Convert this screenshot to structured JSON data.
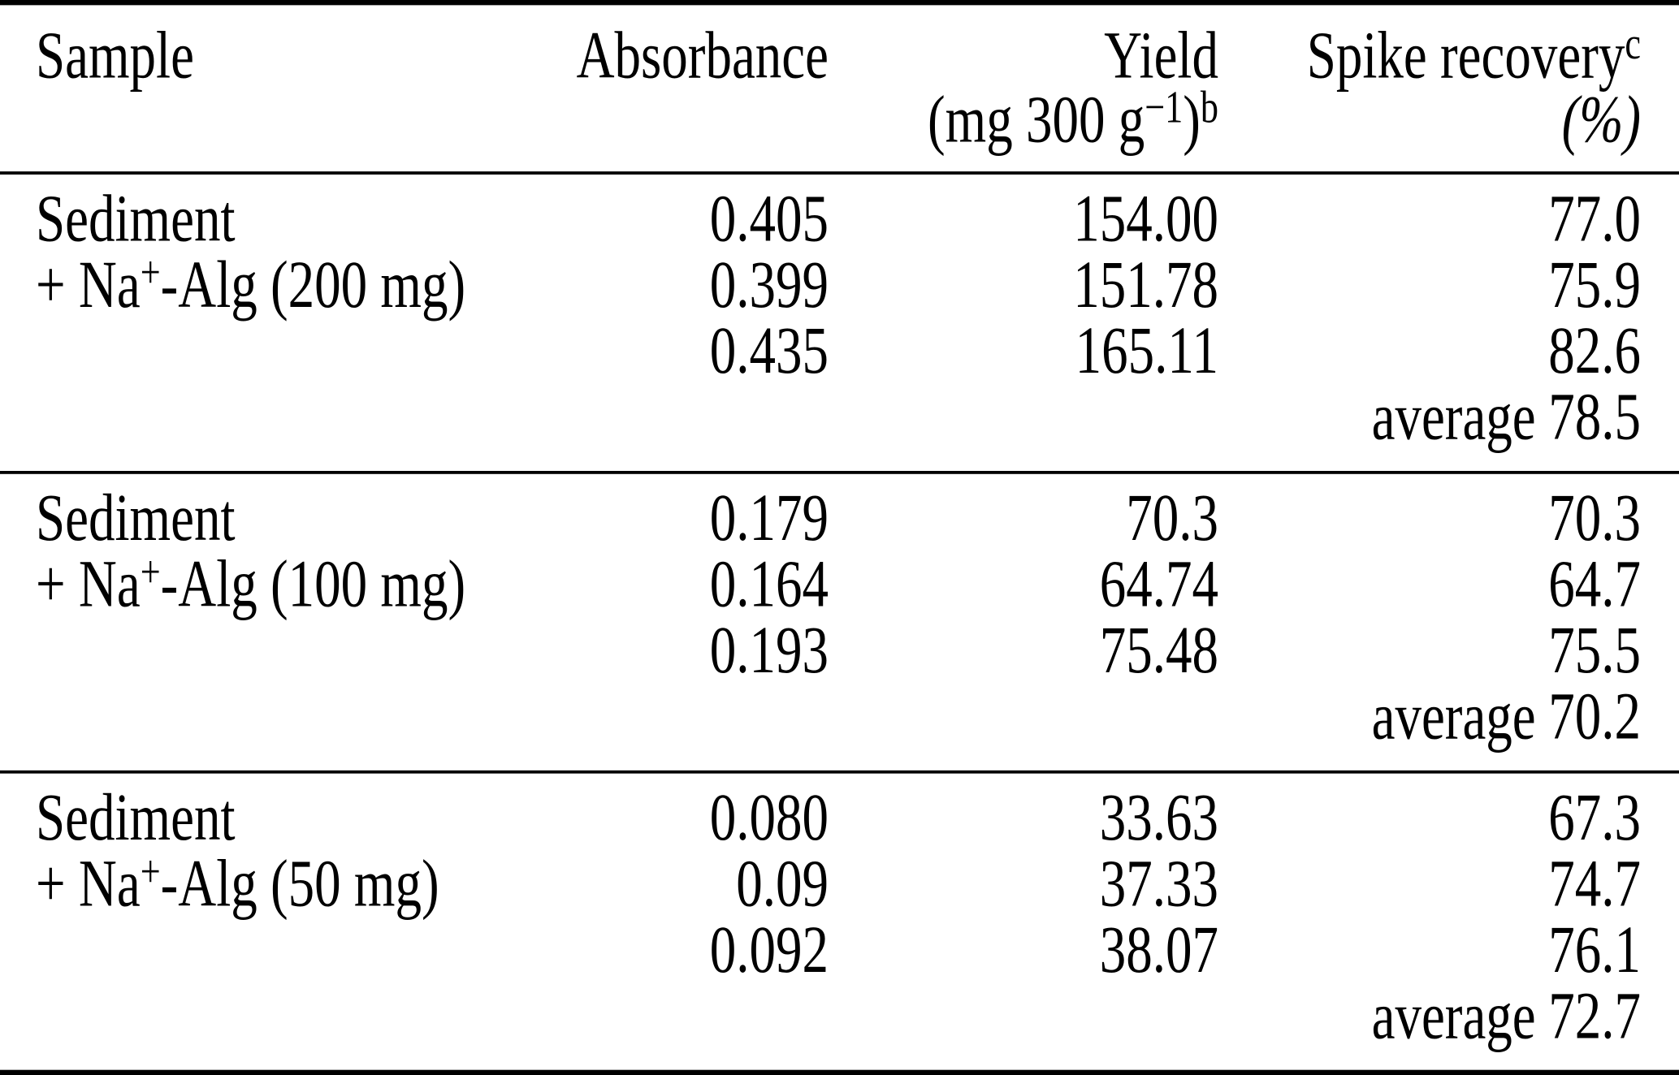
{
  "colors": {
    "text": "#000000",
    "background": "#ffffff",
    "rule": "#000000"
  },
  "header": {
    "sample": "Sample",
    "absorbance": "Absorbance",
    "yield": {
      "line1": "Yield",
      "line2_open": "(mg 300 g",
      "line2_sup_exp": "−1",
      "line2_close": ")",
      "line2_sup_note": "b"
    },
    "recovery": {
      "line1": "Spike recovery",
      "sup_note": "c",
      "line2": "(%)"
    }
  },
  "average_label": "average",
  "blocks": [
    {
      "sample": {
        "line1": "Sediment",
        "line2_pre": "+ Na",
        "line2_sup": "+",
        "line2_post": "-Alg (200 mg)"
      },
      "rows": [
        {
          "absorbance": "0.405",
          "yield": "154.00",
          "recovery": "77.0"
        },
        {
          "absorbance": "0.399",
          "yield": "151.78",
          "recovery": "75.9"
        },
        {
          "absorbance": "0.435",
          "yield": "165.11",
          "recovery": "82.6"
        }
      ],
      "average": "78.5"
    },
    {
      "sample": {
        "line1": "Sediment",
        "line2_pre": "+ Na",
        "line2_sup": "+",
        "line2_post": "-Alg (100 mg)"
      },
      "rows": [
        {
          "absorbance": "0.179",
          "yield": "70.3",
          "recovery": "70.3"
        },
        {
          "absorbance": "0.164",
          "yield": "64.74",
          "recovery": "64.7"
        },
        {
          "absorbance": "0.193",
          "yield": "75.48",
          "recovery": "75.5"
        }
      ],
      "average": "70.2"
    },
    {
      "sample": {
        "line1": "Sediment",
        "line2_pre": "+ Na",
        "line2_sup": "+",
        "line2_post": "-Alg (50 mg)"
      },
      "rows": [
        {
          "absorbance": "0.080",
          "yield": "33.63",
          "recovery": "67.3"
        },
        {
          "absorbance": "0.09",
          "yield": "37.33",
          "recovery": "74.7"
        },
        {
          "absorbance": "0.092",
          "yield": "38.07",
          "recovery": "76.1"
        }
      ],
      "average": "72.7"
    }
  ]
}
